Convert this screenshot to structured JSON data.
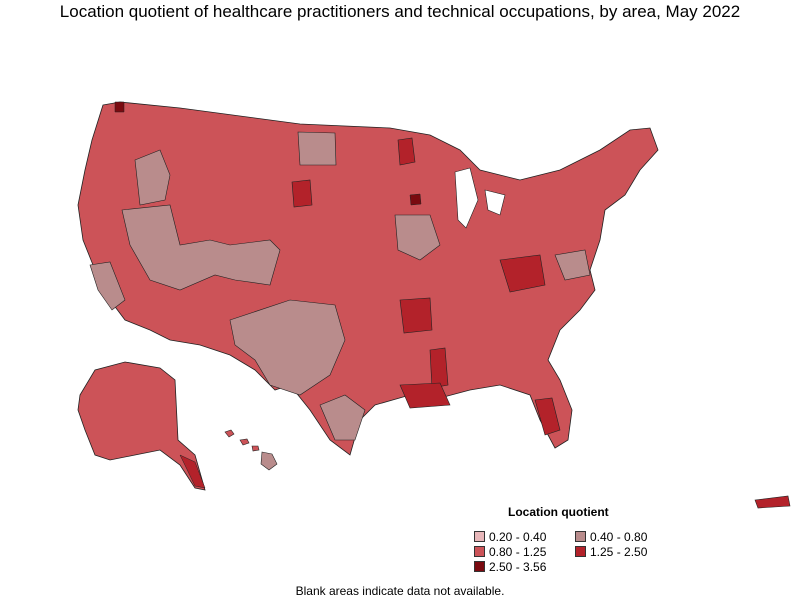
{
  "title": "Location quotient of healthcare practitioners and technical occupations, by area, May 2022",
  "legend": {
    "title": "Location quotient",
    "items": [
      {
        "label": "0.20 - 0.40",
        "color": "#e8b7ba"
      },
      {
        "label": "0.40 - 0.80",
        "color": "#b98c8c"
      },
      {
        "label": "0.80 - 1.25",
        "color": "#cc5358"
      },
      {
        "label": "1.25 - 2.50",
        "color": "#b3222a"
      },
      {
        "label": "2.50 - 3.56",
        "color": "#7a0a10"
      }
    ]
  },
  "footnote": "Blank areas indicate data not available.",
  "colors": {
    "border": "#222222",
    "low": "#e8b7ba",
    "lowmid": "#b98c8c",
    "mid": "#cc5358",
    "high": "#b3222a",
    "top": "#7a0a10"
  }
}
